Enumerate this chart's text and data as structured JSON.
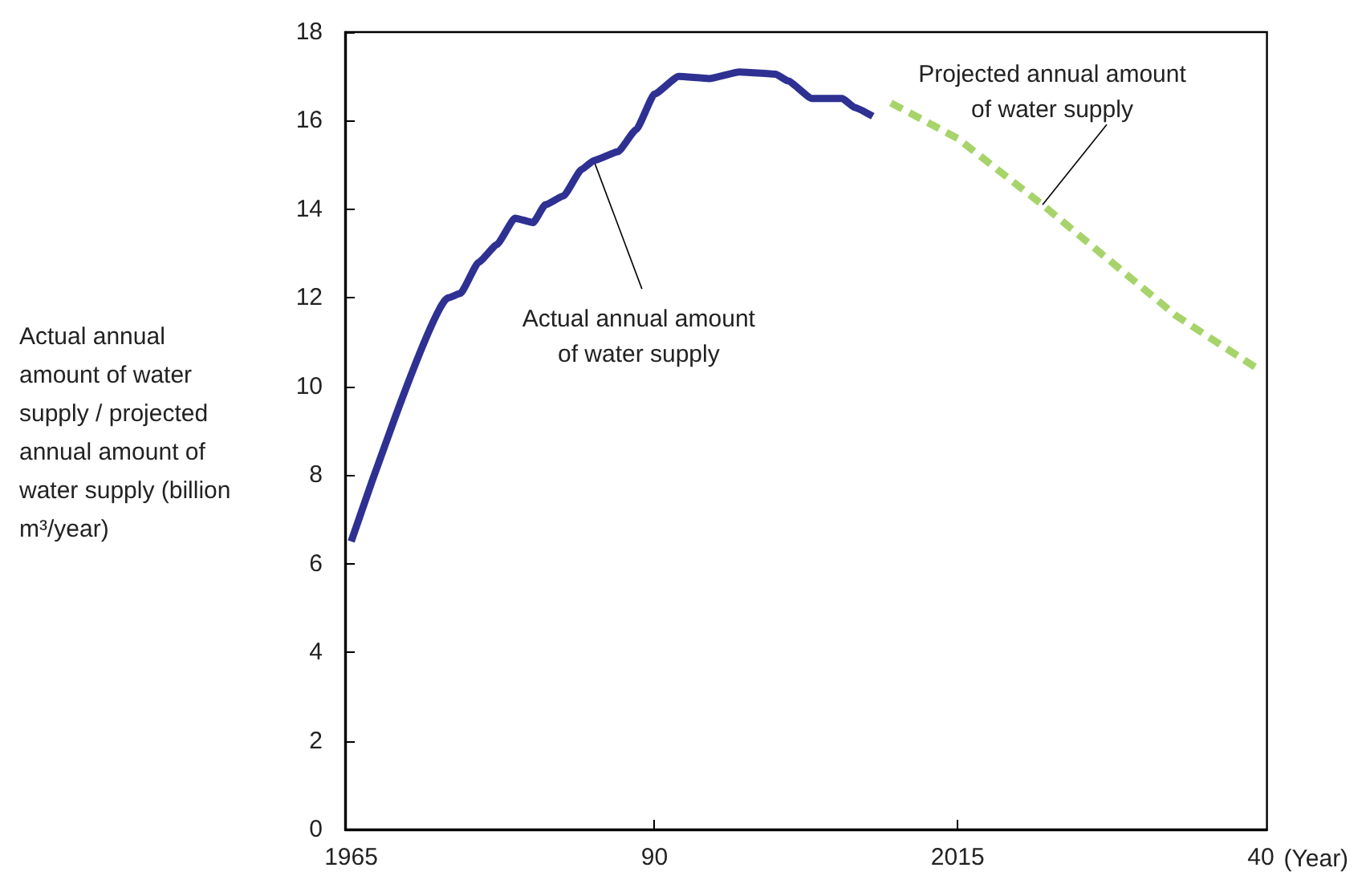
{
  "chart_data": {
    "type": "line",
    "ylabel": "Actual annual amount of water supply / projected annual amount of water supply (billion m³/year)",
    "xlabel": "(Year)",
    "xlim": [
      1964.5,
      2040.5
    ],
    "xticks": [
      {
        "value": 1965,
        "label": "1965"
      },
      {
        "value": 1990,
        "label": "90"
      },
      {
        "value": 2015,
        "label": "2015"
      },
      {
        "value": 2040,
        "label": "40"
      }
    ],
    "ylim": [
      0,
      18
    ],
    "yticks": [
      0,
      2,
      4,
      6,
      8,
      10,
      12,
      14,
      16,
      18
    ],
    "grid": false,
    "series": [
      {
        "color": "#2e3192",
        "line_style": "solid",
        "x": [
          1965,
          1973,
          1974,
          1975.5,
          1977,
          1978.5,
          1980,
          1981,
          1982.5,
          1984,
          1985,
          1987,
          1988.5,
          1990,
          1992,
          1994.5,
          1997,
          2000,
          2001,
          2003,
          2005.5,
          2006.5,
          2008
        ],
        "values": [
          6.5,
          12.0,
          12.1,
          12.8,
          13.2,
          13.8,
          13.7,
          14.1,
          14.3,
          14.9,
          15.1,
          15.3,
          15.8,
          16.6,
          17.0,
          16.95,
          17.1,
          17.05,
          16.9,
          16.5,
          16.5,
          16.3,
          16.1
        ]
      },
      {
        "color": "#a6d46a",
        "line_style": "dashed",
        "x": [
          2009.5,
          2015,
          2022,
          2033,
          2040
        ],
        "values": [
          16.4,
          15.6,
          14.1,
          11.6,
          10.35
        ]
      }
    ],
    "annotations": [
      {
        "text": "Actual annual amount\nof water supply",
        "x": 1985,
        "y": 15.1
      },
      {
        "text": "Projected annual amount\nof water supply",
        "x": 2022,
        "y": 14.1
      }
    ]
  }
}
